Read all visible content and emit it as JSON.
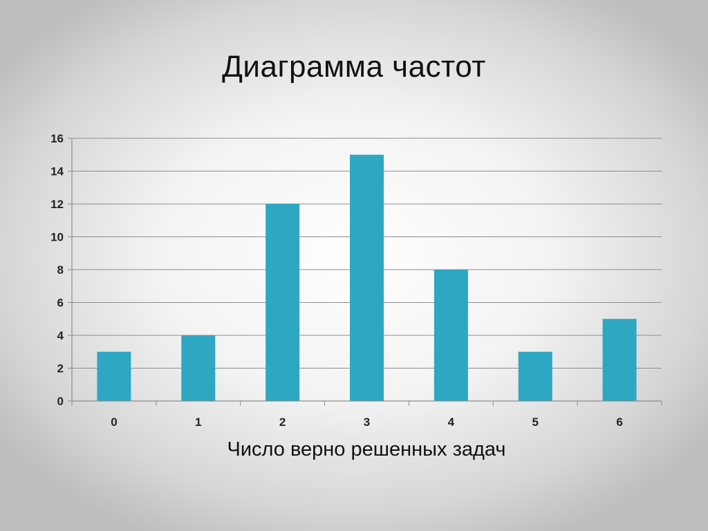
{
  "chart_data": {
    "type": "bar",
    "title": "Диаграмма частот",
    "xlabel": "Число верно решенных задач",
    "ylabel": "",
    "categories": [
      "0",
      "1",
      "2",
      "3",
      "4",
      "5",
      "6"
    ],
    "values": [
      3,
      4,
      12,
      15,
      8,
      3,
      5
    ],
    "ylim": [
      0,
      16
    ],
    "yticks": [
      "0",
      "2",
      "4",
      "6",
      "8",
      "10",
      "12",
      "14",
      "16"
    ],
    "grid": true,
    "legend": "none",
    "bar_color": "#2ea7c3"
  }
}
